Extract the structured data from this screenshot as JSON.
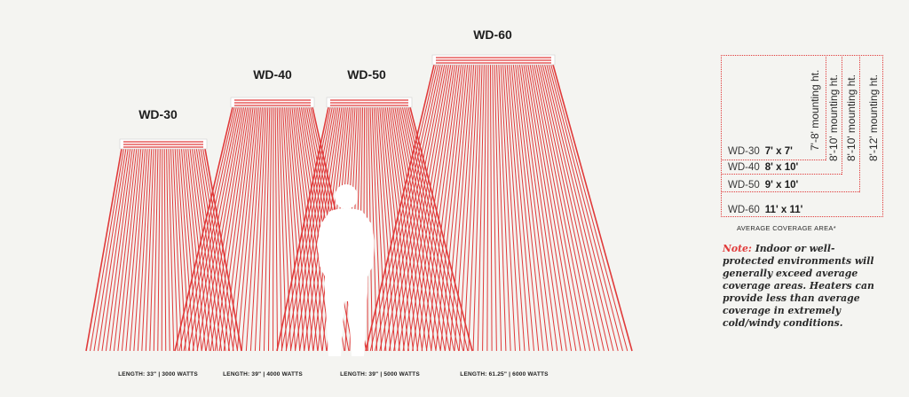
{
  "heaters": [
    {
      "model": "WD-30",
      "spec": "LENGTH: 33\" | 3000 WATTS"
    },
    {
      "model": "WD-40",
      "spec": "LENGTH: 39\" | 4000 WATTS"
    },
    {
      "model": "WD-50",
      "spec": "LENGTH: 39\" | 5000 WATTS"
    },
    {
      "model": "WD-60",
      "spec": "LENGTH: 61.25\" | 6000 WATTS"
    }
  ],
  "legend": {
    "heights": [
      "7'-8' mounting ht.",
      "8'-10' mounting ht.",
      "8'-10' mounting ht.",
      "8'-12' mounting ht."
    ],
    "rows": [
      {
        "model": "WD-30",
        "area": "7' x 7'"
      },
      {
        "model": "WD-40",
        "area": "8' x 10'"
      },
      {
        "model": "WD-50",
        "area": "9' x 10'"
      },
      {
        "model": "WD-60",
        "area": "11' x 11'"
      }
    ],
    "caption": "AVERAGE COVERAGE AREA*"
  },
  "note": {
    "label": "Note:",
    "text": "Indoor or well-protected environments will generally exceed average coverage areas. Heaters can provide less than average coverage in extremely cold/windy conditions."
  },
  "colors": {
    "accent": "#e03a3a",
    "background": "#f4f4f1"
  }
}
